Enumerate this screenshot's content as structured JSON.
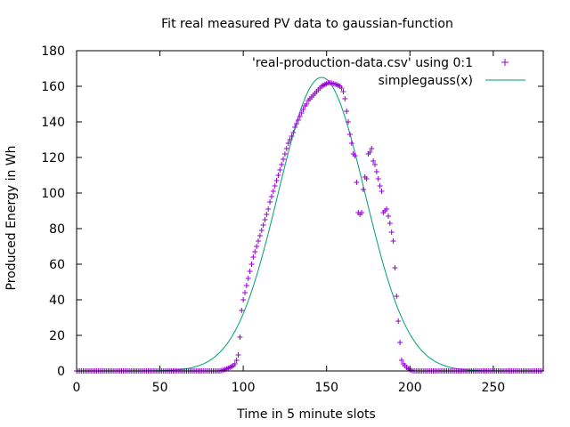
{
  "chart_data": {
    "type": "scatter",
    "title": "Fit real measured PV data to gaussian-function",
    "xlabel": "Time in 5 minute slots",
    "ylabel": "Produced Energy in Wh",
    "xlim": [
      0,
      280
    ],
    "ylim": [
      0,
      180
    ],
    "xticks": [
      0,
      50,
      100,
      150,
      200,
      250
    ],
    "yticks": [
      0,
      20,
      40,
      60,
      80,
      100,
      120,
      140,
      160,
      180
    ],
    "grid": false,
    "legend_position": "top-right",
    "series": [
      {
        "name": "'real-production-data.csv' using 0:1",
        "kind": "points",
        "marker": "plus",
        "color": "#9400D3",
        "x_start": 0,
        "values": [
          0,
          0,
          0,
          0,
          0,
          0,
          0,
          0,
          0,
          0,
          0,
          0,
          0,
          0,
          0,
          0,
          0,
          0,
          0,
          0,
          0,
          0,
          0,
          0,
          0,
          0,
          0,
          0,
          0,
          0,
          0,
          0,
          0,
          0,
          0,
          0,
          0,
          0,
          0,
          0,
          0,
          0,
          0,
          0,
          0,
          0,
          0,
          0,
          0,
          0,
          0,
          0,
          0,
          0,
          0,
          0,
          0,
          0,
          0,
          0,
          0,
          0,
          0,
          0,
          0,
          0,
          0,
          0,
          0,
          0,
          0,
          0,
          0,
          0,
          0,
          0,
          0,
          0,
          0,
          0,
          0,
          0,
          0,
          0,
          0,
          0,
          0,
          0.2,
          0.5,
          0.8,
          1.2,
          1.6,
          2,
          2.5,
          3,
          4,
          6,
          9,
          19,
          34,
          40,
          44,
          48,
          52,
          56,
          60,
          64,
          67,
          70,
          73,
          76,
          79,
          82,
          85,
          88,
          91,
          95,
          98,
          101,
          104,
          107,
          110,
          113,
          116,
          119,
          122,
          125,
          128,
          130,
          132,
          134,
          137,
          139,
          141,
          143,
          145,
          147,
          149,
          150,
          152,
          153,
          154,
          155,
          156,
          157,
          158,
          159,
          160,
          160.5,
          161,
          161.5,
          162,
          162,
          161.8,
          161.5,
          161.2,
          161,
          160.5,
          160,
          159,
          157,
          153,
          146,
          140,
          133,
          128,
          122,
          121,
          106,
          89,
          88,
          89,
          102,
          109,
          108,
          122,
          123,
          125,
          118,
          116,
          112,
          108,
          104,
          101,
          89,
          90,
          91,
          87,
          83,
          78,
          73,
          58,
          42,
          28,
          16,
          6,
          4,
          3,
          2,
          1.2,
          0.6,
          0.3,
          0,
          0,
          0,
          0,
          0,
          0,
          0,
          0,
          0,
          0,
          0,
          0,
          0,
          0,
          0,
          0,
          0,
          0,
          0,
          0,
          0,
          0,
          0,
          0,
          0,
          0,
          0,
          0,
          0,
          0,
          0,
          0,
          0,
          0,
          0,
          0,
          0,
          0,
          0,
          0,
          0,
          0,
          0,
          0,
          0,
          0,
          0,
          0,
          0,
          0,
          0,
          0,
          0,
          0,
          0,
          0,
          0,
          0,
          0,
          0,
          0,
          0,
          0,
          0,
          0,
          0,
          0,
          0,
          0,
          0,
          0,
          0,
          0,
          0,
          0,
          0,
          0,
          0
        ]
      },
      {
        "name": "simplegauss(x)",
        "kind": "line",
        "color": "#009E73",
        "function": {
          "amplitude": 165,
          "mean": 147,
          "sigma": 26,
          "x_range": [
            0,
            280
          ],
          "step": 1
        }
      }
    ]
  }
}
